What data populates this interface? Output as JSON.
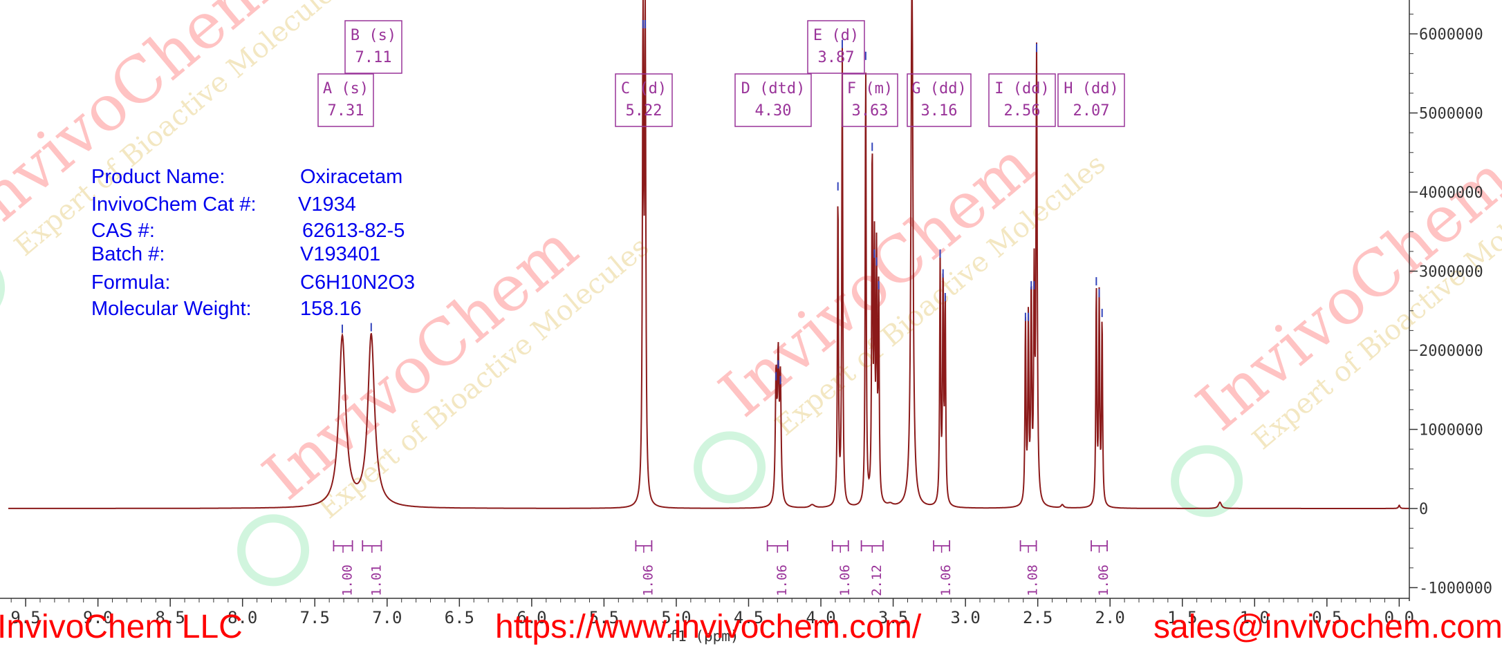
{
  "chart_data": {
    "type": "line",
    "title": "",
    "xlabel": "f1 (ppm)",
    "ylabel": "",
    "x_range": [
      9.62,
      -0.07
    ],
    "y_range": [
      -1000000,
      6500000
    ],
    "x_ticks": [
      9.5,
      9.0,
      8.5,
      8.0,
      7.5,
      7.0,
      6.5,
      6.0,
      5.5,
      5.0,
      4.5,
      4.0,
      3.5,
      3.0,
      2.5,
      2.0,
      1.5,
      1.0,
      0.5,
      0.0
    ],
    "x_tick_labels": [
      "9.5",
      "9.0",
      "8.5",
      "8.0",
      "7.5",
      "7.0",
      "6.5",
      "6.0",
      "5.5",
      "5.0",
      "4.5",
      "4.0",
      "3.5",
      "3.0",
      "2.5",
      "2.0",
      "1.5",
      "1.0",
      "0.5",
      "0.0"
    ],
    "y_ticks": [
      -1000000,
      0,
      1000000,
      2000000,
      3000000,
      4000000,
      5000000,
      6000000
    ],
    "y_tick_labels": [
      "-1000000",
      "0",
      "1000000",
      "2000000",
      "3000000",
      "4000000",
      "5000000",
      "6000000"
    ],
    "grid": false,
    "series": [
      {
        "color": "#8b1a1a",
        "peaks": [
          {
            "x": 7.31,
            "y": 2150000,
            "w": 0.028
          },
          {
            "x": 7.11,
            "y": 2170000,
            "w": 0.028
          },
          {
            "x": 5.23,
            "y": 6000000,
            "w": 0.005
          },
          {
            "x": 5.215,
            "y": 6000000,
            "w": 0.005
          },
          {
            "x": 4.31,
            "y": 1550000,
            "w": 0.006
          },
          {
            "x": 4.295,
            "y": 1700000,
            "w": 0.006
          },
          {
            "x": 4.28,
            "y": 1500000,
            "w": 0.006
          },
          {
            "x": 3.882,
            "y": 3950000,
            "w": 0.004
          },
          {
            "x": 3.852,
            "y": 5750000,
            "w": 0.004
          },
          {
            "x": 3.69,
            "y": 5600000,
            "w": 0.004
          },
          {
            "x": 3.645,
            "y": 4450000,
            "w": 0.004
          },
          {
            "x": 3.63,
            "y": 3100000,
            "w": 0.004
          },
          {
            "x": 3.615,
            "y": 3000000,
            "w": 0.004
          },
          {
            "x": 3.6,
            "y": 2700000,
            "w": 0.004
          },
          {
            "x": 3.37,
            "y": 7000000,
            "w": 0.008
          },
          {
            "x": 3.175,
            "y": 3100000,
            "w": 0.004
          },
          {
            "x": 3.155,
            "y": 2850000,
            "w": 0.004
          },
          {
            "x": 3.14,
            "y": 2550000,
            "w": 0.004
          },
          {
            "x": 2.585,
            "y": 2300000,
            "w": 0.004
          },
          {
            "x": 2.565,
            "y": 2300000,
            "w": 0.004
          },
          {
            "x": 2.545,
            "y": 2700000,
            "w": 0.004
          },
          {
            "x": 2.525,
            "y": 2700000,
            "w": 0.004
          },
          {
            "x": 2.508,
            "y": 5700000,
            "w": 0.005
          },
          {
            "x": 2.095,
            "y": 2750000,
            "w": 0.004
          },
          {
            "x": 2.075,
            "y": 2600000,
            "w": 0.004
          },
          {
            "x": 2.055,
            "y": 2350000,
            "w": 0.004
          },
          {
            "x": 4.06,
            "y": 40000,
            "w": 0.02
          },
          {
            "x": 3.52,
            "y": 30000,
            "w": 0.02
          },
          {
            "x": 2.33,
            "y": 40000,
            "w": 0.01
          },
          {
            "x": 1.24,
            "y": 80000,
            "w": 0.012
          },
          {
            "x": 0.0,
            "y": 40000,
            "w": 0.006
          }
        ]
      }
    ],
    "peak_labels": [
      {
        "name": "A (s)",
        "shift": "7.31"
      },
      {
        "name": "B (s)",
        "shift": "7.11"
      },
      {
        "name": "C (d)",
        "shift": "5.22"
      },
      {
        "name": "D (dtd)",
        "shift": "4.30"
      },
      {
        "name": "E (d)",
        "shift": "3.87"
      },
      {
        "name": "F (m)",
        "shift": "3.63"
      },
      {
        "name": "G (dd)",
        "shift": "3.16"
      },
      {
        "name": "I (dd)",
        "shift": "2.56"
      },
      {
        "name": "H (dd)",
        "shift": "2.07"
      }
    ],
    "integrals": [
      {
        "from": 7.37,
        "to": 7.24,
        "value": "1.00"
      },
      {
        "from": 7.17,
        "to": 7.04,
        "value": "1.01"
      },
      {
        "from": 5.28,
        "to": 5.17,
        "value": "1.06"
      },
      {
        "from": 4.37,
        "to": 4.23,
        "value": "1.06"
      },
      {
        "from": 3.92,
        "to": 3.81,
        "value": "1.06"
      },
      {
        "from": 3.72,
        "to": 3.57,
        "value": "2.12"
      },
      {
        "from": 3.22,
        "to": 3.11,
        "value": "1.06"
      },
      {
        "from": 2.62,
        "to": 2.51,
        "value": "1.08"
      },
      {
        "from": 2.13,
        "to": 2.02,
        "value": "1.06"
      }
    ],
    "colors": {
      "spectrum": "#8b1a1a",
      "peak_picks": "#3344bb",
      "labels": "#993399",
      "axis": "#333333"
    }
  },
  "info": {
    "product_name_label": "Product Name:",
    "product_name": "Oxiracetam",
    "cat_label": "InvivoChem Cat #:",
    "cat": "V1934",
    "cas_label": "CAS #:",
    "cas": "62613-82-5",
    "batch_label": "Batch #:",
    "batch": "V193401",
    "formula_label": "Formula:",
    "formula": "C6H10N2O3",
    "mw_label": "Molecular Weight:",
    "mw": "158.16"
  },
  "footer": {
    "company": "InvivoChem LLC",
    "url": "https://www.invivochem.com/",
    "email": "sales@invivochem.com"
  },
  "watermark": {
    "brand": "InvivoChem",
    "tagline": "Expert of Bioactive Molecules"
  }
}
